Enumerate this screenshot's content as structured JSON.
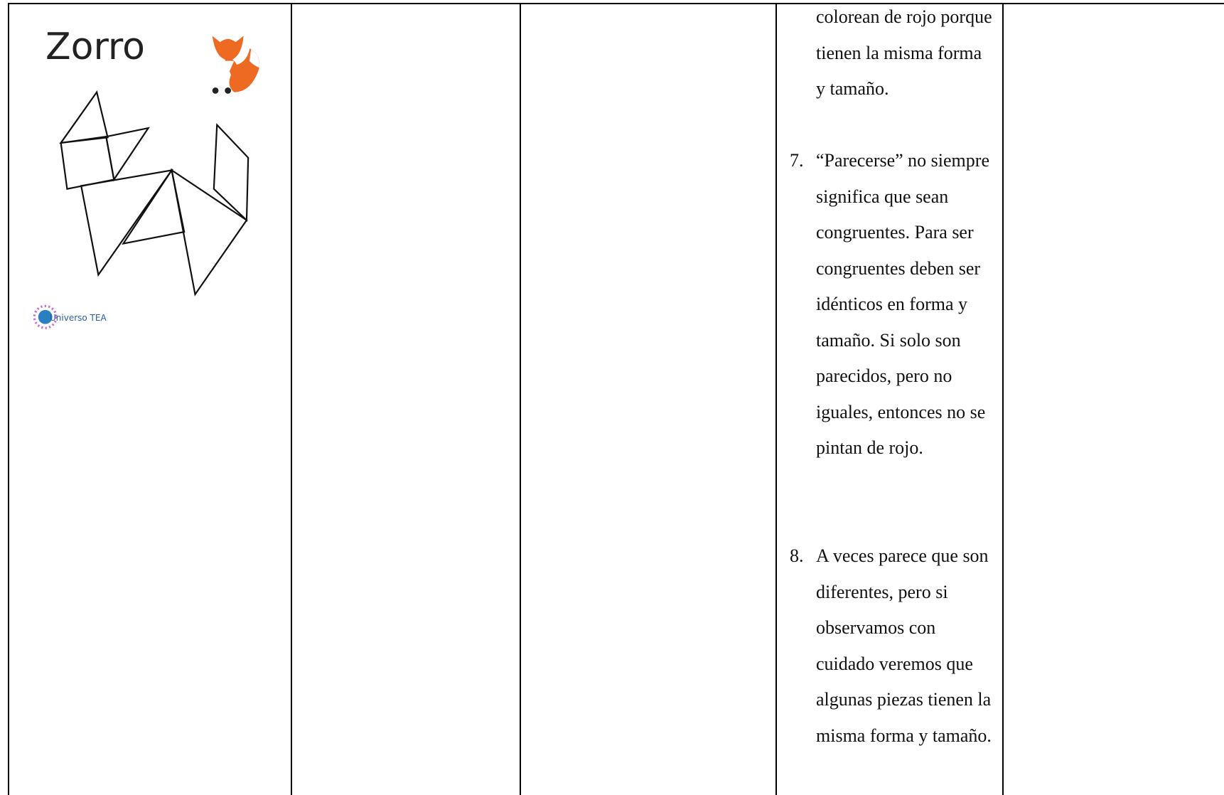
{
  "table": {
    "cell_0": {
      "title": "Zorro",
      "logo": "Universo TEA"
    },
    "cell_3": {
      "continuation": "colorean de rojo porque tienen la misma forma y tamaño.",
      "items": [
        {
          "number": "7.",
          "text": "“Parecerse” no siempre significa que sean congruentes. Para ser congruentes deben ser idénticos en forma y tamaño. Si solo son parecidos, pero no iguales, entonces no se pintan de rojo."
        },
        {
          "number": "8.",
          "text": "A veces parece que son diferentes, pero si observamos con cuidado veremos que algunas piezas tienen la misma forma y tamaño."
        }
      ]
    }
  }
}
